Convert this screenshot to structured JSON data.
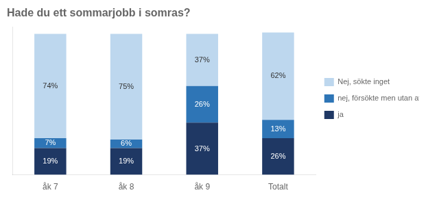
{
  "chart_data": {
    "type": "bar",
    "title": "Hade du ett sommarjobb i somras?",
    "categories": [
      "åk 7",
      "åk 8",
      "åk 9",
      "Totalt"
    ],
    "series": [
      {
        "name": "ja",
        "color": "#1F3864",
        "values": [
          19,
          19,
          37,
          26
        ],
        "value_labels": [
          "19%",
          "19%",
          "37%",
          "26%"
        ]
      },
      {
        "name": "nej, försökte men utan att lyckas",
        "color": "#2E75B6",
        "values": [
          7,
          6,
          26,
          13
        ],
        "value_labels": [
          "7%",
          "6%",
          "26%",
          "13%"
        ]
      },
      {
        "name": "Nej, sökte inget",
        "color": "#BDD7EE",
        "values": [
          74,
          75,
          37,
          62
        ],
        "value_labels": [
          "74%",
          "75%",
          "37%",
          "62%"
        ]
      }
    ],
    "ylim": [
      0,
      105
    ],
    "stacked": true,
    "data_labels": true,
    "tick_labels": "x",
    "grid": false,
    "legend": "right"
  }
}
